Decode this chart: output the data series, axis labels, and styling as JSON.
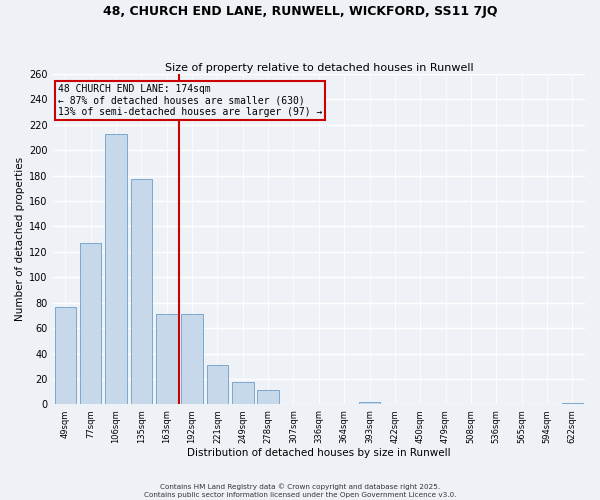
{
  "title": "48, CHURCH END LANE, RUNWELL, WICKFORD, SS11 7JQ",
  "subtitle": "Size of property relative to detached houses in Runwell",
  "xlabel": "Distribution of detached houses by size in Runwell",
  "ylabel": "Number of detached properties",
  "bar_color": "#c8d8eb",
  "bar_edge_color": "#7aa8cc",
  "vline_color": "#cc0000",
  "vline_x_bin": 4,
  "categories": [
    "49sqm",
    "77sqm",
    "106sqm",
    "135sqm",
    "163sqm",
    "192sqm",
    "221sqm",
    "249sqm",
    "278sqm",
    "307sqm",
    "336sqm",
    "364sqm",
    "393sqm",
    "422sqm",
    "450sqm",
    "479sqm",
    "508sqm",
    "536sqm",
    "565sqm",
    "594sqm",
    "622sqm"
  ],
  "values": [
    77,
    127,
    213,
    177,
    71,
    71,
    31,
    18,
    11,
    0,
    0,
    0,
    2,
    0,
    0,
    0,
    0,
    0,
    0,
    0,
    1
  ],
  "ylim": [
    0,
    260
  ],
  "yticks": [
    0,
    20,
    40,
    60,
    80,
    100,
    120,
    140,
    160,
    180,
    200,
    220,
    240,
    260
  ],
  "annotation_line1": "48 CHURCH END LANE: 174sqm",
  "annotation_line2": "← 87% of detached houses are smaller (630)",
  "annotation_line3": "13% of semi-detached houses are larger (97) →",
  "footnote1": "Contains HM Land Registry data © Crown copyright and database right 2025.",
  "footnote2": "Contains public sector information licensed under the Open Government Licence v3.0.",
  "bg_color": "#eef2f7",
  "grid_color": "#ffffff",
  "box_color": "#cc0000"
}
